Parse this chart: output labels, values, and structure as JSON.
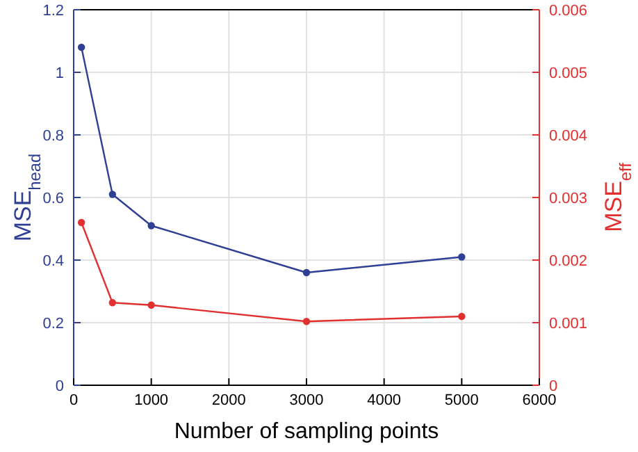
{
  "chart_data": {
    "type": "line",
    "xlabel": "Number of sampling points",
    "ylabel": "MSE$_{head}$",
    "y2label": "MSE$_{eff}$",
    "x": [
      100,
      500,
      1000,
      3000,
      5000
    ],
    "series": [
      {
        "color": "#2e3f94",
        "values": [
          1.08,
          0.61,
          0.51,
          0.36,
          0.41
        ]
      },
      {
        "color": "#e03030",
        "values": [
          0.0026,
          0.00132,
          0.00128,
          0.00102,
          0.0011
        ],
        "axis": "y2"
      }
    ],
    "xlim": [
      0,
      6000
    ],
    "xticks": [
      0,
      1000,
      2000,
      3000,
      4000,
      5000,
      6000
    ],
    "ylim": [
      0,
      1.2
    ],
    "yticks": [
      0,
      0.2,
      0.4,
      0.6,
      0.8,
      1,
      1.2
    ],
    "y2lim": [
      0,
      0.006
    ],
    "y2ticks": [
      0,
      0.001,
      0.002,
      0.003,
      0.004,
      0.005,
      0.006
    ],
    "grid": true,
    "marker": "circle",
    "line_style": "solid"
  }
}
